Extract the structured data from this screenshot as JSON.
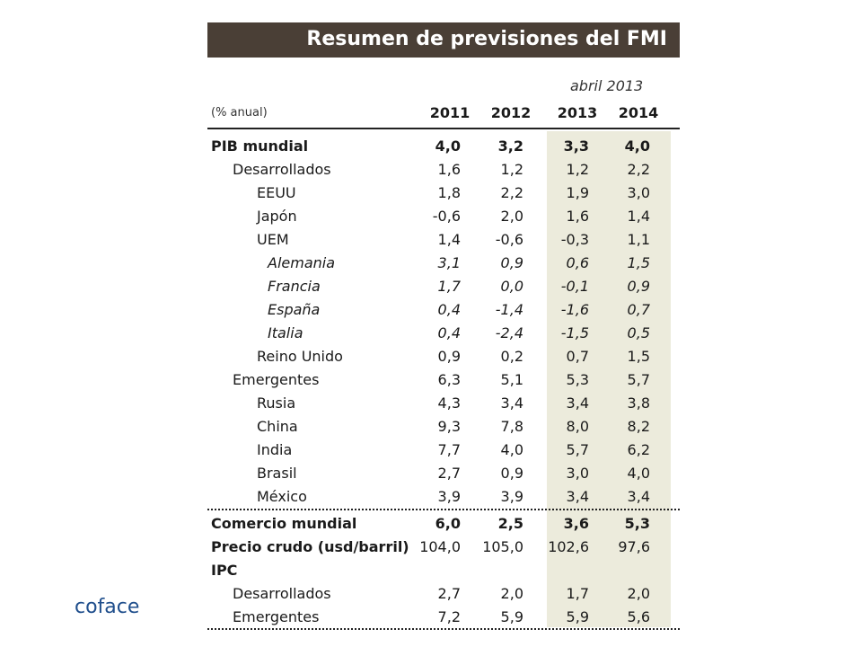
{
  "title": "Resumen de previsiones del FMI",
  "date_label": "abril 2013",
  "unit_label": "(% anual)",
  "years": [
    "2011",
    "2012",
    "2013",
    "2014"
  ],
  "rows": [
    {
      "label": "PIB mundial",
      "indent": 0,
      "style": "bold",
      "values": [
        "4,0",
        "3,2",
        "3,3",
        "4,0"
      ]
    },
    {
      "label": "Desarrollados",
      "indent": 1,
      "style": "normal",
      "values": [
        "1,6",
        "1,2",
        "1,2",
        "2,2"
      ]
    },
    {
      "label": "EEUU",
      "indent": 2,
      "style": "normal",
      "values": [
        "1,8",
        "2,2",
        "1,9",
        "3,0"
      ]
    },
    {
      "label": "Japón",
      "indent": 2,
      "style": "normal",
      "values": [
        "-0,6",
        "2,0",
        "1,6",
        "1,4"
      ]
    },
    {
      "label": "UEM",
      "indent": 2,
      "style": "normal",
      "values": [
        "1,4",
        "-0,6",
        "-0,3",
        "1,1"
      ]
    },
    {
      "label": "Alemania",
      "indent": 3,
      "style": "italic",
      "values": [
        "3,1",
        "0,9",
        "0,6",
        "1,5"
      ]
    },
    {
      "label": "Francia",
      "indent": 3,
      "style": "italic",
      "values": [
        "1,7",
        "0,0",
        "-0,1",
        "0,9"
      ]
    },
    {
      "label": "España",
      "indent": 3,
      "style": "italic",
      "values": [
        "0,4",
        "-1,4",
        "-1,6",
        "0,7"
      ]
    },
    {
      "label": "Italia",
      "indent": 3,
      "style": "italic",
      "values": [
        "0,4",
        "-2,4",
        "-1,5",
        "0,5"
      ]
    },
    {
      "label": "Reino Unido",
      "indent": 2,
      "style": "normal",
      "values": [
        "0,9",
        "0,2",
        "0,7",
        "1,5"
      ]
    },
    {
      "label": "Emergentes",
      "indent": 1,
      "style": "normal",
      "values": [
        "6,3",
        "5,1",
        "5,3",
        "5,7"
      ]
    },
    {
      "label": "Rusia",
      "indent": 2,
      "style": "normal",
      "values": [
        "4,3",
        "3,4",
        "3,4",
        "3,8"
      ]
    },
    {
      "label": "China",
      "indent": 2,
      "style": "normal",
      "values": [
        "9,3",
        "7,8",
        "8,0",
        "8,2"
      ]
    },
    {
      "label": "India",
      "indent": 2,
      "style": "normal",
      "values": [
        "7,7",
        "4,0",
        "5,7",
        "6,2"
      ]
    },
    {
      "label": "Brasil",
      "indent": 2,
      "style": "normal",
      "values": [
        "2,7",
        "0,9",
        "3,0",
        "4,0"
      ]
    },
    {
      "label": "México",
      "indent": 2,
      "style": "normal",
      "values": [
        "3,9",
        "3,9",
        "3,4",
        "3,4"
      ]
    },
    {
      "label": "Comercio mundial",
      "indent": 0,
      "style": "bold",
      "values": [
        "6,0",
        "2,5",
        "3,6",
        "5,3"
      ],
      "rule_above": true
    },
    {
      "label": "Precio crudo (usd/barril)",
      "indent": 0,
      "style": "bold-label",
      "values": [
        "104,0",
        "105,0",
        "102,6",
        "97,6"
      ]
    },
    {
      "label": "IPC",
      "indent": 0,
      "style": "bold",
      "values": [
        "",
        "",
        "",
        ""
      ]
    },
    {
      "label": "Desarrollados",
      "indent": 1,
      "style": "normal",
      "values": [
        "2,7",
        "2,0",
        "1,7",
        "2,0"
      ]
    },
    {
      "label": "Emergentes",
      "indent": 1,
      "style": "normal",
      "values": [
        "7,2",
        "5,9",
        "5,9",
        "5,6"
      ]
    }
  ],
  "logo": "coface",
  "colors": {
    "title_bar": "#4a3f36",
    "forecast_shade": "#ecebdc",
    "logo": "#1f4e8c"
  }
}
